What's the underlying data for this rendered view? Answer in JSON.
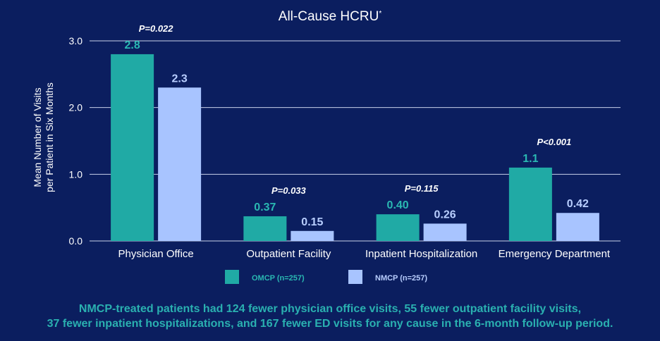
{
  "chart_data": {
    "type": "bar",
    "title": "All-Cause HCRU",
    "title_superscript": "*",
    "ylabel_lines": [
      "Mean Number of Visits",
      "per Patient in Six Months"
    ],
    "ylim": [
      0,
      3.0
    ],
    "yticks": [
      "0.0",
      "1.0",
      "2.0",
      "3.0"
    ],
    "grid": true,
    "categories": [
      "Physician Office",
      "Outpatient Facility",
      "Inpatient Hospitalization",
      "Emergency Department"
    ],
    "series": [
      {
        "name": "OMCP (n=257)",
        "color": "#20aaa5",
        "label_color": "#2ab8b2",
        "values": [
          2.8,
          0.37,
          0.4,
          1.1
        ],
        "labels": [
          "2.8",
          "0.37",
          "0.40",
          "1.1"
        ]
      },
      {
        "name": "NMCP (n=257)",
        "color": "#a8c4ff",
        "label_color": "#b8ceff",
        "values": [
          2.3,
          0.15,
          0.26,
          0.42
        ],
        "labels": [
          "2.3",
          "0.15",
          "0.26",
          "0.42"
        ]
      }
    ],
    "p_values": [
      "P=0.022",
      "P=0.033",
      "P=0.115",
      "P<0.001"
    ],
    "legend_position": "bottom"
  },
  "footnote": {
    "line1": "NMCP-treated patients had 124 fewer physician office visits, 55 fewer outpatient facility visits,",
    "line2": "37 fewer inpatient hospitalizations, and 167 fewer ED visits for any cause in the 6-month follow-up period."
  },
  "colors": {
    "background": "#0b1e5f",
    "accent": "#2ab0b0"
  }
}
